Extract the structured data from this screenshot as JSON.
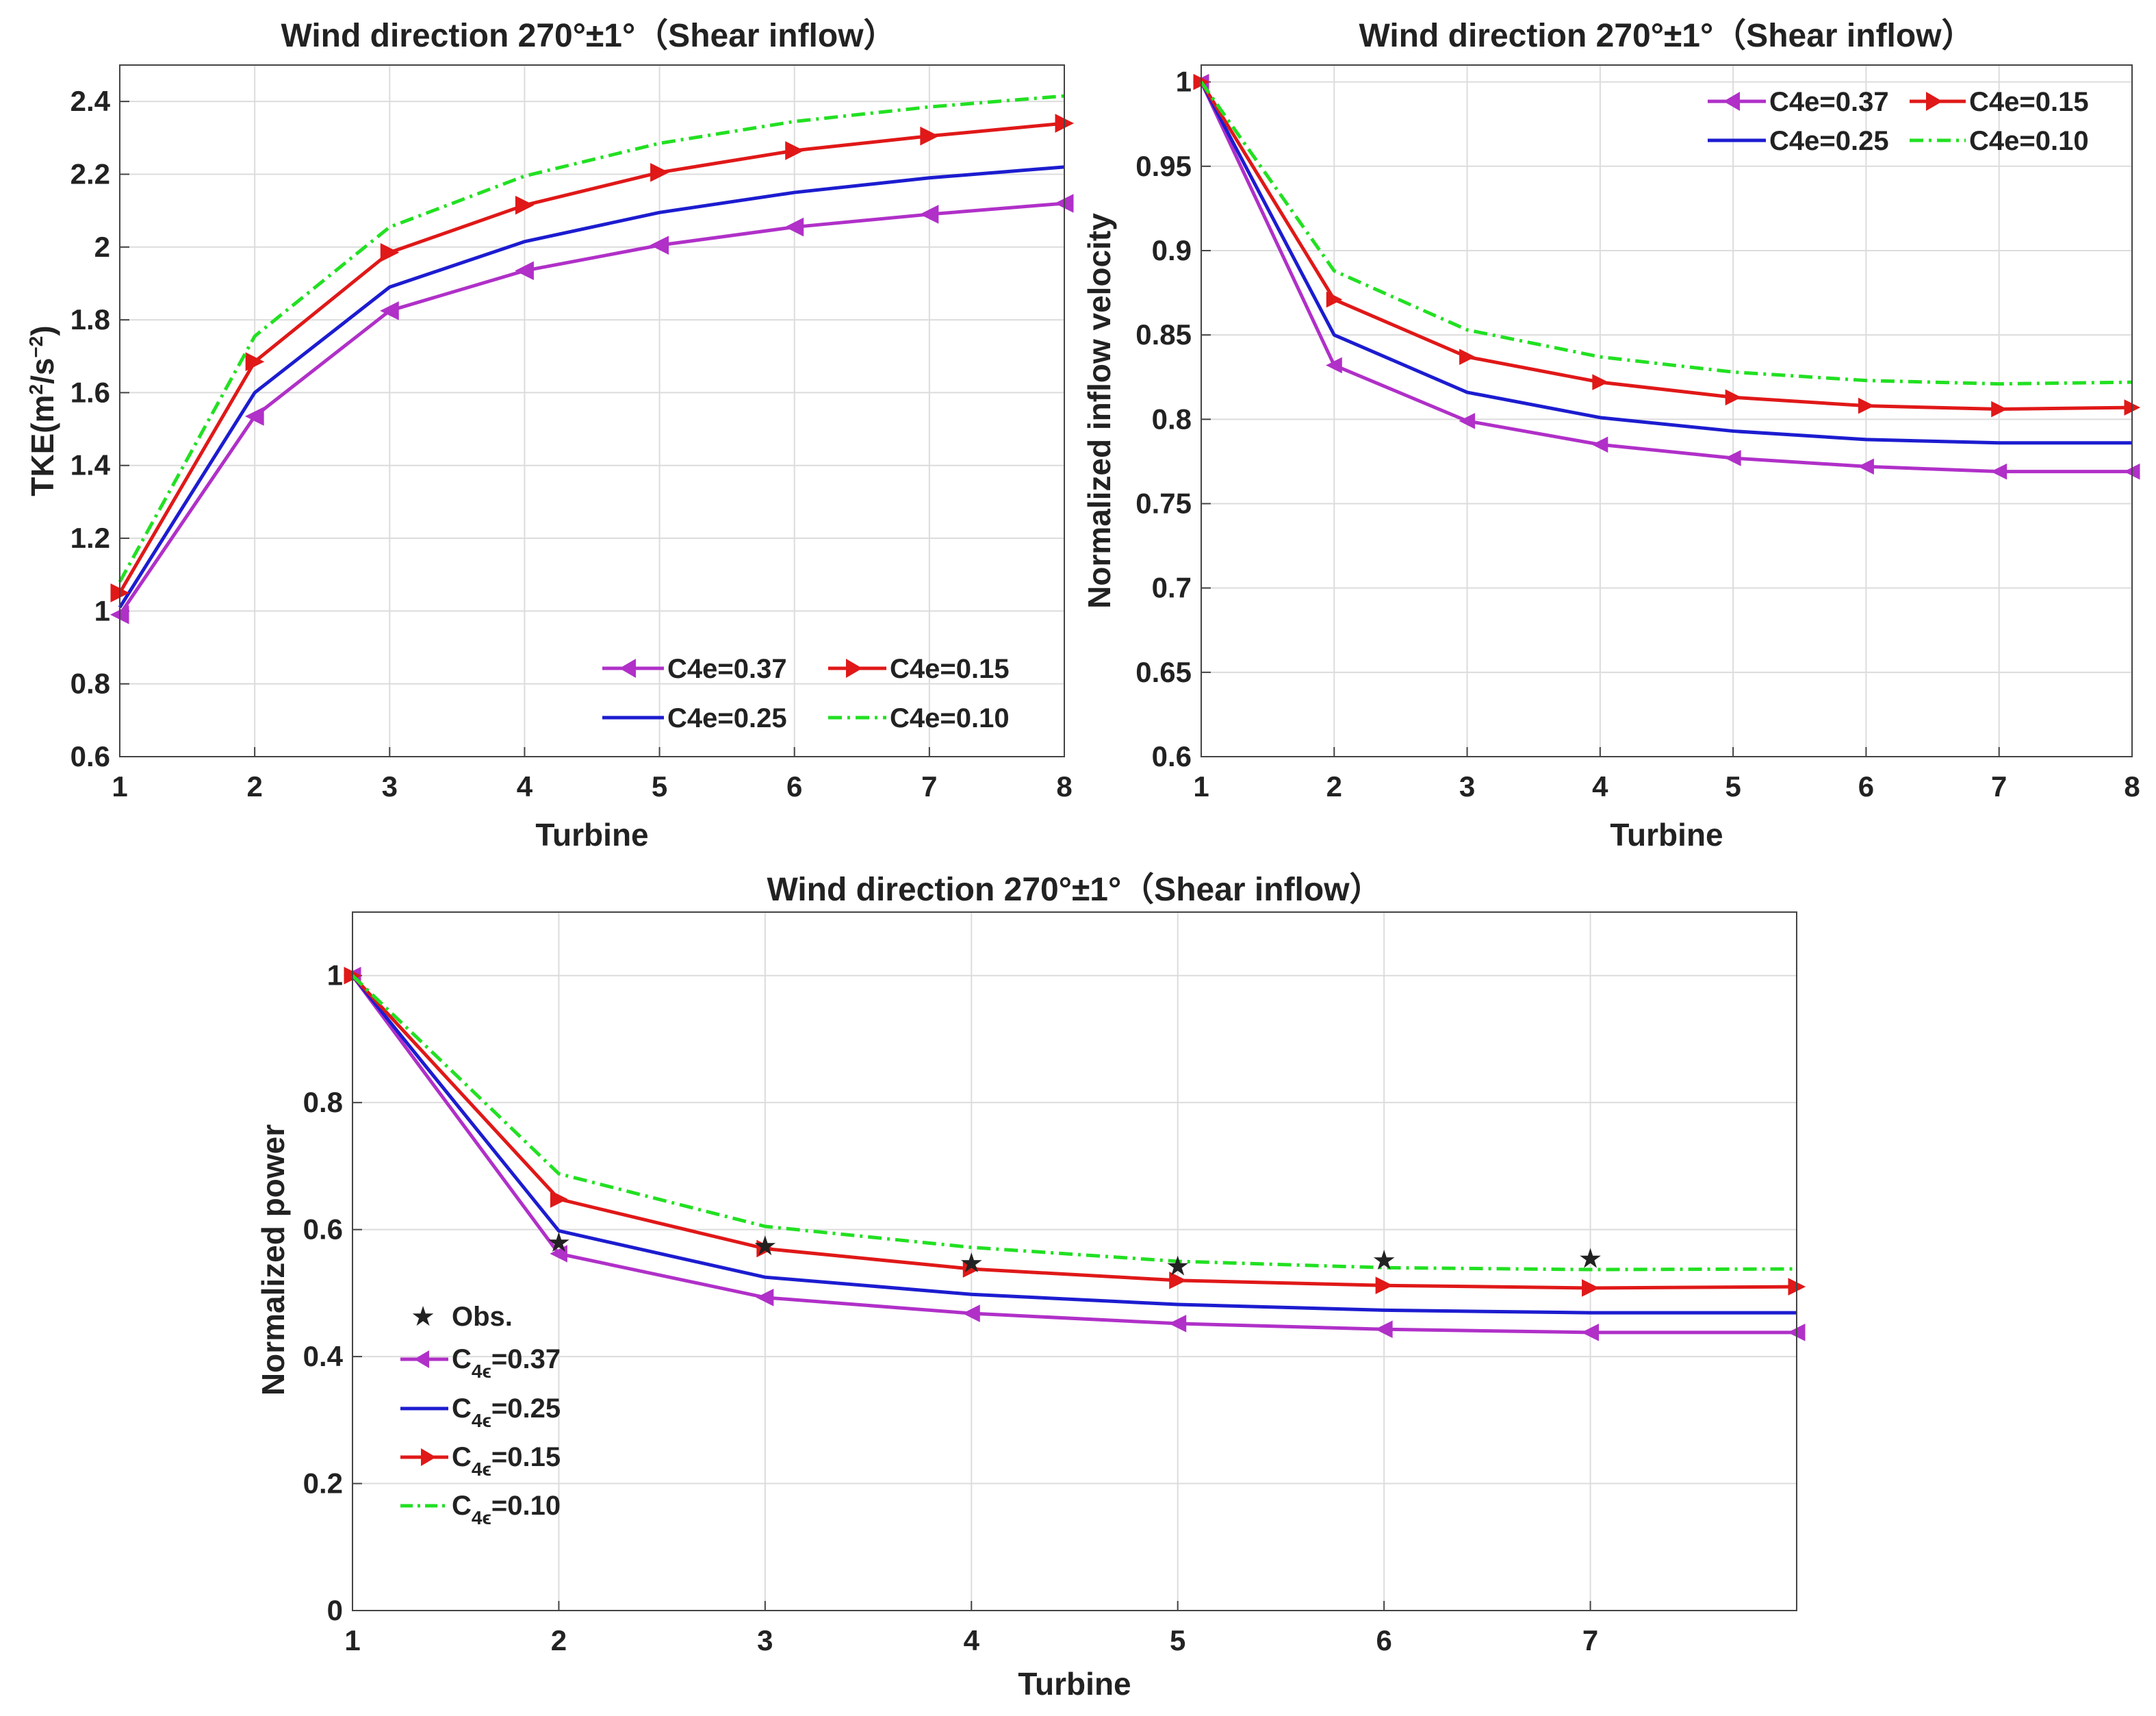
{
  "colors": {
    "c037": "#b030c8",
    "c025": "#1c1cd0",
    "c015": "#e01818",
    "c010": "#22e022",
    "obs": "#000000"
  },
  "chart_data": [
    {
      "id": "tke",
      "type": "line",
      "title": "Wind direction 270°±1°（Shear inflow）",
      "xlabel": "Turbine",
      "ylabel_main": "TKE(m",
      "ylabel_sup1": "2",
      "ylabel_mid": "/s",
      "ylabel_sup2": "−2",
      "ylabel_end": ")",
      "x": [
        1,
        2,
        3,
        4,
        5,
        6,
        7,
        8
      ],
      "xticks": [
        "1",
        "2",
        "3",
        "4",
        "5",
        "6",
        "7",
        "8"
      ],
      "yticks": [
        "0.6",
        "0.8",
        "1",
        "1.2",
        "1.4",
        "1.6",
        "1.8",
        "2",
        "2.2",
        "2.4"
      ],
      "xlim": [
        1,
        8
      ],
      "ylim": [
        0.6,
        2.5
      ],
      "grid": true,
      "legend_placement": "bottom-right",
      "series": [
        {
          "name": "C4e=0.37",
          "color_key": "c037",
          "marker": "triangle-left",
          "dash": "solid",
          "values": [
            0.99,
            1.535,
            1.825,
            1.935,
            2.005,
            2.055,
            2.09,
            2.12
          ]
        },
        {
          "name": "C4e=0.25",
          "color_key": "c025",
          "marker": "none",
          "dash": "solid",
          "values": [
            1.01,
            1.6,
            1.89,
            2.015,
            2.095,
            2.15,
            2.19,
            2.22
          ]
        },
        {
          "name": "C4e=0.15",
          "color_key": "c015",
          "marker": "triangle-right",
          "dash": "solid",
          "values": [
            1.05,
            1.685,
            1.985,
            2.115,
            2.205,
            2.265,
            2.305,
            2.34
          ]
        },
        {
          "name": "C4e=0.10",
          "color_key": "c010",
          "marker": "none",
          "dash": "dashdot",
          "values": [
            1.08,
            1.755,
            2.055,
            2.195,
            2.285,
            2.345,
            2.385,
            2.415
          ]
        }
      ]
    },
    {
      "id": "velocity",
      "type": "line",
      "title": "Wind direction 270°±1°（Shear inflow）",
      "xlabel": "Turbine",
      "ylabel_main": "Normalized inflow velocity",
      "x": [
        1,
        2,
        3,
        4,
        5,
        6,
        7,
        8
      ],
      "xticks": [
        "1",
        "2",
        "3",
        "4",
        "5",
        "6",
        "7",
        "8"
      ],
      "yticks": [
        "0.6",
        "0.65",
        "0.7",
        "0.75",
        "0.8",
        "0.85",
        "0.9",
        "0.95",
        "1"
      ],
      "xlim": [
        1,
        8
      ],
      "ylim": [
        0.6,
        1.01
      ],
      "grid": true,
      "legend_placement": "top-right",
      "series": [
        {
          "name": "C4e=0.37",
          "color_key": "c037",
          "marker": "triangle-left",
          "dash": "solid",
          "values": [
            1.0,
            0.832,
            0.799,
            0.785,
            0.777,
            0.772,
            0.769,
            0.769
          ]
        },
        {
          "name": "C4e=0.25",
          "color_key": "c025",
          "marker": "none",
          "dash": "solid",
          "values": [
            1.0,
            0.85,
            0.816,
            0.801,
            0.793,
            0.788,
            0.786,
            0.786
          ]
        },
        {
          "name": "C4e=0.15",
          "color_key": "c015",
          "marker": "triangle-right",
          "dash": "solid",
          "values": [
            1.0,
            0.871,
            0.837,
            0.822,
            0.813,
            0.808,
            0.806,
            0.807
          ]
        },
        {
          "name": "C4e=0.10",
          "color_key": "c010",
          "marker": "none",
          "dash": "dashdot",
          "values": [
            1.0,
            0.888,
            0.853,
            0.837,
            0.828,
            0.823,
            0.821,
            0.822
          ]
        }
      ]
    },
    {
      "id": "power",
      "type": "line",
      "title": "Wind direction 270°±1°（Shear inflow）",
      "xlabel": "Turbine",
      "ylabel_main": "Normalized power",
      "x": [
        1,
        2,
        3,
        4,
        5,
        6,
        7,
        8
      ],
      "xticks": [
        "1",
        "2",
        "3",
        "4",
        "5",
        "6",
        "7"
      ],
      "yticks": [
        "0",
        "0.2",
        "0.4",
        "0.6",
        "0.8",
        "1"
      ],
      "xlim": [
        1,
        8
      ],
      "ylim": [
        0,
        1.1
      ],
      "grid": true,
      "legend_placement": "bottom-left",
      "obs": {
        "name": "Obs.",
        "x": [
          2,
          3,
          4,
          5,
          6,
          7
        ],
        "values": [
          0.58,
          0.575,
          0.548,
          0.543,
          0.552,
          0.555
        ]
      },
      "series": [
        {
          "name": "C",
          "sub": "4ϵ",
          "suffix": "=0.37",
          "color_key": "c037",
          "marker": "triangle-left",
          "dash": "solid",
          "values": [
            1.0,
            0.562,
            0.493,
            0.468,
            0.452,
            0.443,
            0.438,
            0.438
          ]
        },
        {
          "name": "C",
          "sub": "4ϵ",
          "suffix": "=0.25",
          "color_key": "c025",
          "marker": "none",
          "dash": "solid",
          "values": [
            1.0,
            0.598,
            0.525,
            0.498,
            0.482,
            0.473,
            0.469,
            0.469
          ]
        },
        {
          "name": "C",
          "sub": "4ϵ",
          "suffix": "=0.15",
          "color_key": "c015",
          "marker": "triangle-right",
          "dash": "solid",
          "values": [
            1.0,
            0.648,
            0.57,
            0.538,
            0.52,
            0.512,
            0.508,
            0.51
          ]
        },
        {
          "name": "C",
          "sub": "4ϵ",
          "suffix": "=0.10",
          "color_key": "c010",
          "marker": "none",
          "dash": "dashdot",
          "values": [
            1.0,
            0.688,
            0.605,
            0.572,
            0.55,
            0.54,
            0.537,
            0.538
          ]
        }
      ]
    }
  ]
}
